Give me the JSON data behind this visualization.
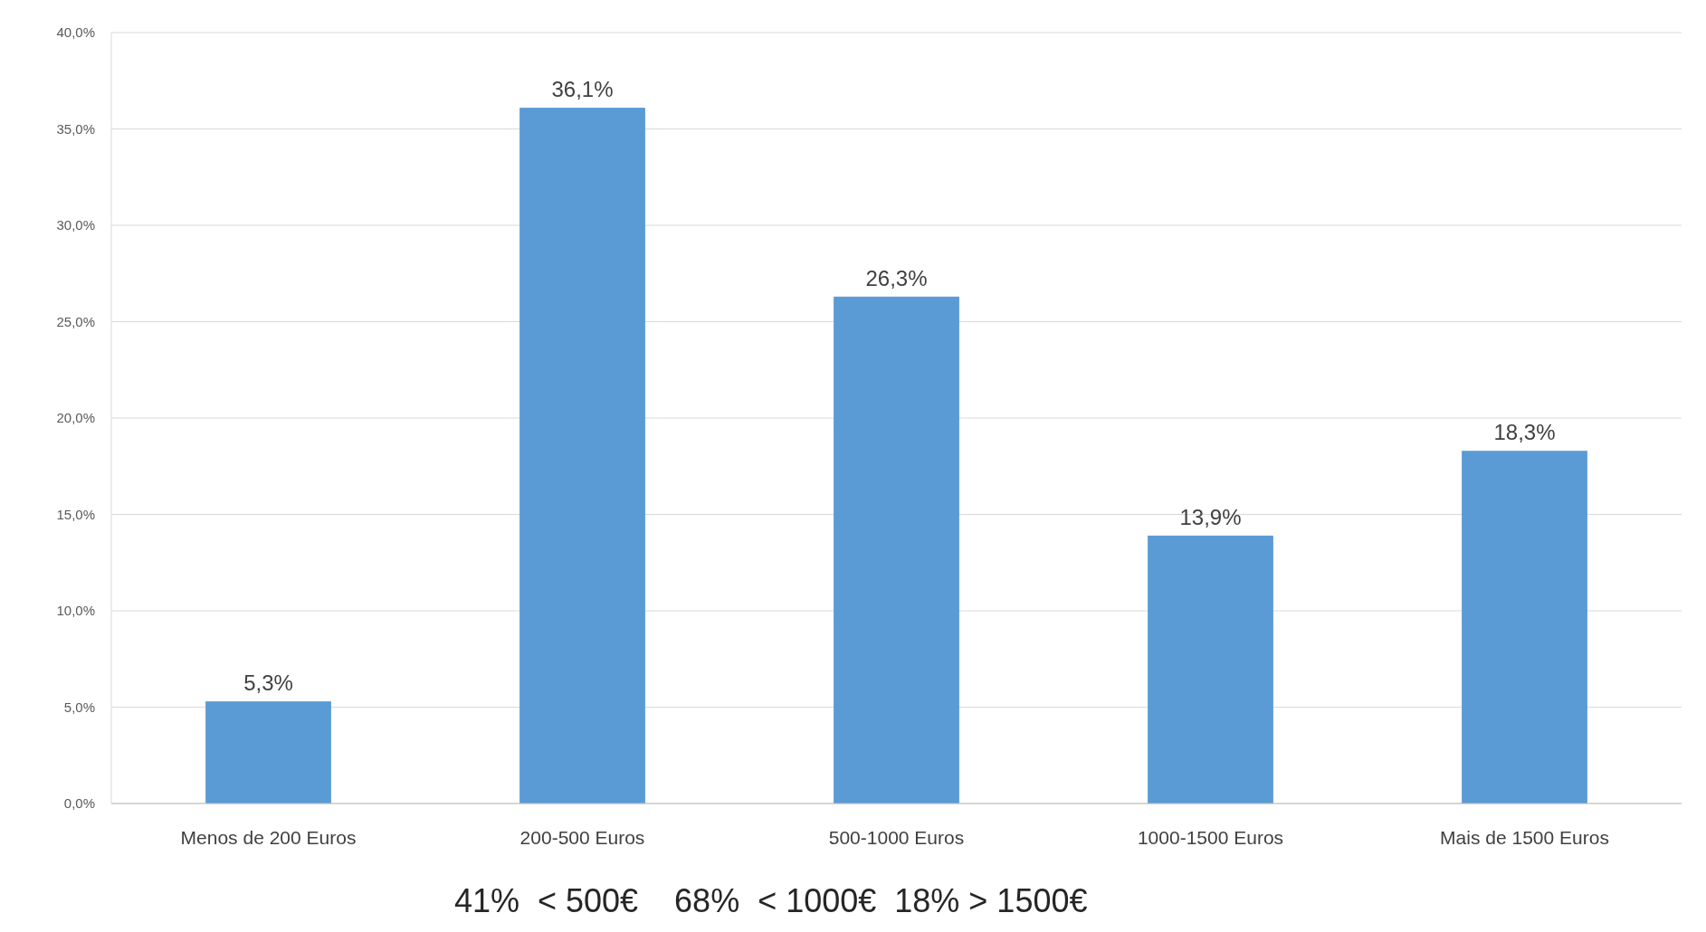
{
  "chart_data": {
    "type": "bar",
    "categories": [
      "Menos de 200 Euros",
      "200-500 Euros",
      "500-1000 Euros",
      "1000-1500 Euros",
      "Mais de 1500 Euros"
    ],
    "values": [
      5.3,
      36.1,
      26.3,
      13.9,
      18.3
    ],
    "color": "#5b9bd5",
    "value_labels": [
      "5,3%",
      "36,1%",
      "26,3%",
      "13,9%",
      "18,3%"
    ],
    "ylim": [
      0,
      40
    ],
    "yticks": [
      {
        "value": 0,
        "label": "0,0%"
      },
      {
        "value": 5,
        "label": "5,0%"
      },
      {
        "value": 10,
        "label": "10,0%"
      },
      {
        "value": 15,
        "label": "15,0%"
      },
      {
        "value": 20,
        "label": "20,0%"
      },
      {
        "value": 25,
        "label": "25,0%"
      },
      {
        "value": 30,
        "label": "30,0%"
      },
      {
        "value": 35,
        "label": "35,0%"
      },
      {
        "value": 40,
        "label": "40,0%"
      }
    ],
    "grid": "y",
    "annotations": [
      "41%  < 500€    68%  < 1000€  18% > 1500€"
    ]
  }
}
